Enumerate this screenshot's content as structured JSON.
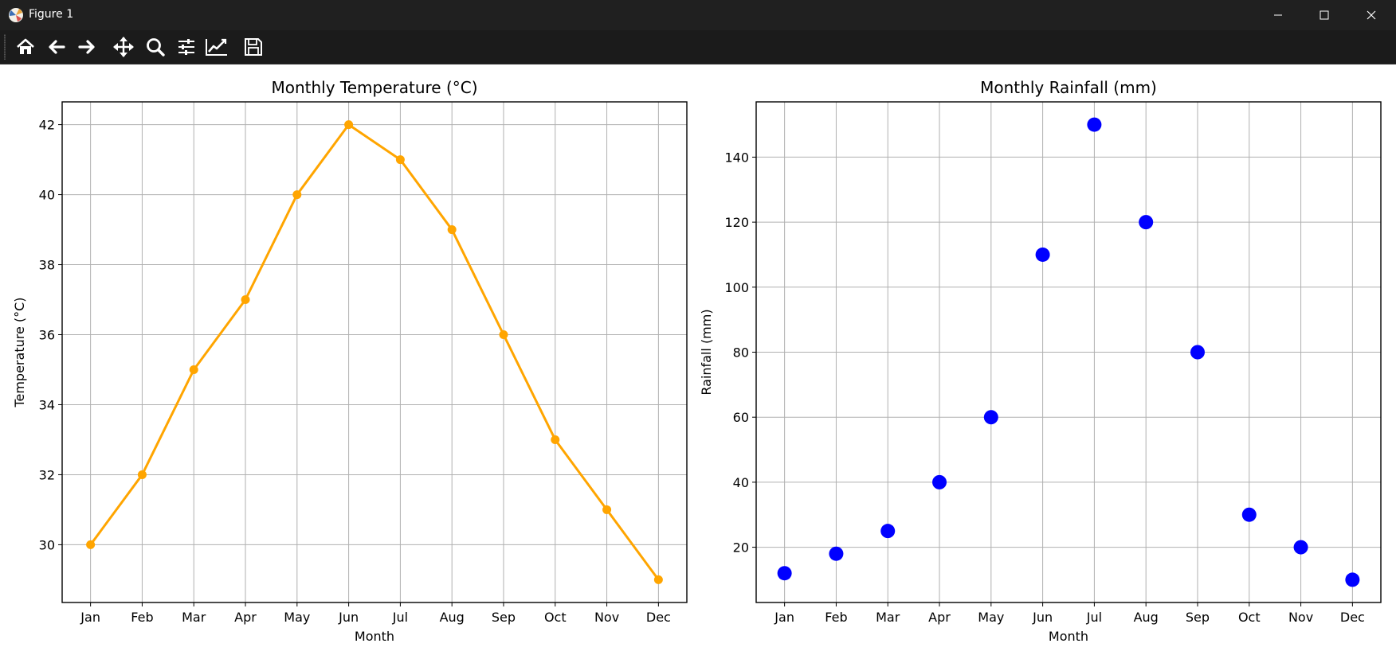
{
  "window": {
    "title": "Figure 1",
    "controls": [
      "minimize-icon",
      "maximize-icon",
      "close-icon"
    ]
  },
  "toolbar": {
    "tools": [
      "home-icon",
      "back-arrow-icon",
      "forward-arrow-icon",
      "pan-icon",
      "zoom-icon",
      "configure-subplots-icon",
      "edit-axis-icon",
      "save-icon"
    ]
  },
  "chart_data": [
    {
      "type": "line",
      "title": "Monthly Temperature (°C)",
      "xlabel": "Month",
      "ylabel": "Temperature (°C)",
      "categories": [
        "Jan",
        "Feb",
        "Mar",
        "Apr",
        "May",
        "Jun",
        "Jul",
        "Aug",
        "Sep",
        "Oct",
        "Nov",
        "Dec"
      ],
      "values": [
        30,
        32,
        35,
        37,
        40,
        42,
        41,
        39,
        36,
        33,
        31,
        29
      ],
      "yticks": [
        30,
        32,
        34,
        36,
        38,
        40,
        42
      ],
      "ylim": [
        28.35,
        42.65
      ],
      "color": "#ffa500",
      "marker": "circle",
      "grid": true
    },
    {
      "type": "scatter",
      "title": "Monthly Rainfall (mm)",
      "xlabel": "Month",
      "ylabel": "Rainfall (mm)",
      "categories": [
        "Jan",
        "Feb",
        "Mar",
        "Apr",
        "May",
        "Jun",
        "Jul",
        "Aug",
        "Sep",
        "Oct",
        "Nov",
        "Dec"
      ],
      "values": [
        12,
        18,
        25,
        40,
        60,
        110,
        150,
        120,
        80,
        30,
        20,
        10
      ],
      "yticks": [
        20,
        40,
        60,
        80,
        100,
        120,
        140
      ],
      "ylim": [
        3,
        157
      ],
      "color": "#0000ff",
      "marker": "circle",
      "grid": true
    }
  ]
}
